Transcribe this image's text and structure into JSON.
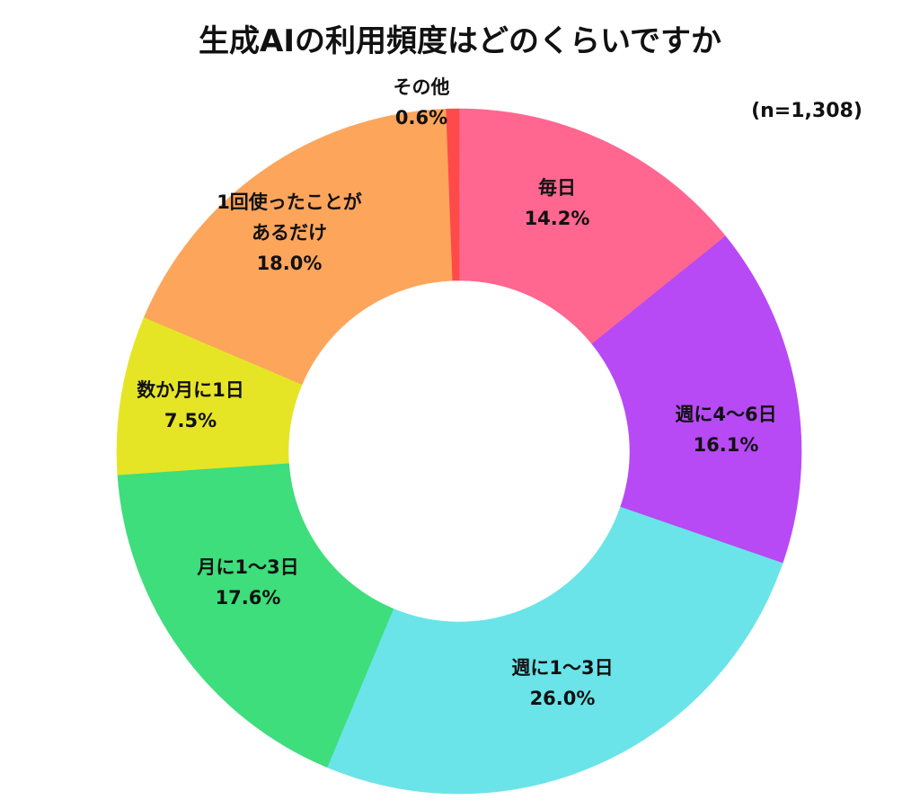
{
  "chart_data": {
    "type": "pie",
    "variant": "donut",
    "title": "生成AIの利用頻度はどのくらいですか",
    "sample_size": "(n=1,308)",
    "unit": "%",
    "categories": [
      "毎日",
      "週に4～6日",
      "週に1～3日",
      "月に1～3日",
      "数か月に1日",
      "1回使ったことがあるだけ",
      "その他"
    ],
    "values": [
      14.2,
      16.1,
      26.0,
      17.6,
      7.5,
      18.0,
      0.6
    ],
    "value_labels": [
      "14.2%",
      "16.1%",
      "26.0%",
      "17.6%",
      "7.5%",
      "18.0%",
      "0.6%"
    ],
    "label_lines": [
      [
        "毎日"
      ],
      [
        "週に4～6日"
      ],
      [
        "週に1～3日"
      ],
      [
        "月に1～3日"
      ],
      [
        "数か月に1日"
      ],
      [
        "1回使ったことが",
        "あるだけ"
      ],
      [
        "その他"
      ]
    ],
    "colors": [
      "#ff6690",
      "#b74af5",
      "#6ae4e9",
      "#3dde7b",
      "#e5e526",
      "#fea55c",
      "#ff4a4a"
    ],
    "start_angle_deg": 0,
    "direction": "clockwise",
    "legend": "none"
  }
}
